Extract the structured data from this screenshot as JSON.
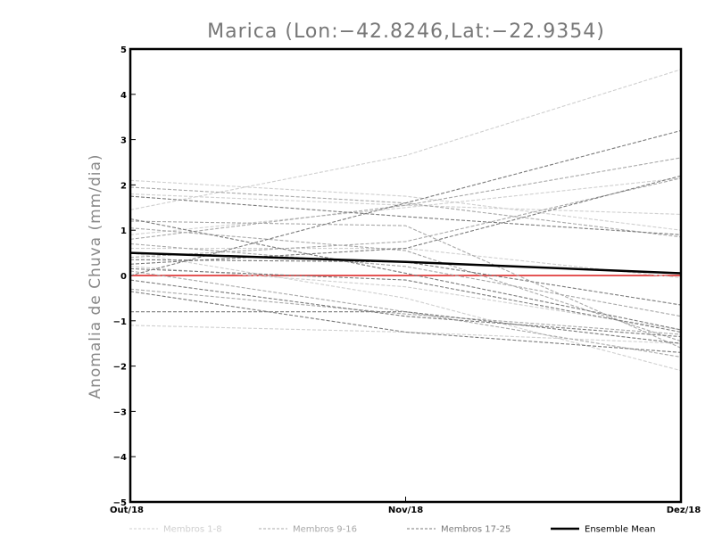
{
  "chart_data": {
    "type": "line",
    "title": "Marica (Lon:−42.8246,Lat:−22.9354)",
    "ylabel": "Anomalia de Chuva (mm/dia)",
    "xlabel": "",
    "categories": [
      "Out/18",
      "Nov/18",
      "Dez/18"
    ],
    "ylim": [
      -5,
      5
    ],
    "yticks": [
      "5",
      "4",
      "3",
      "2",
      "1",
      "0",
      "−1",
      "−2",
      "−3",
      "−4",
      "−5"
    ],
    "grid": false,
    "legend_position": "bottom",
    "zero_line_color": "#e03c3c",
    "groups": [
      {
        "name": "Membros 1-8",
        "color": "#cfcfcf"
      },
      {
        "name": "Membros 9-16",
        "color": "#a8a8a8"
      },
      {
        "name": "Membros 17-25",
        "color": "#7a7a7a"
      }
    ],
    "members": [
      {
        "group": 0,
        "values": [
          1.45,
          2.65,
          4.55
        ]
      },
      {
        "group": 0,
        "values": [
          2.1,
          1.75,
          1.0
        ]
      },
      {
        "group": 0,
        "values": [
          1.8,
          1.55,
          1.35
        ]
      },
      {
        "group": 0,
        "values": [
          0.9,
          1.5,
          2.15
        ]
      },
      {
        "group": 0,
        "values": [
          -1.1,
          -1.25,
          -1.5
        ]
      },
      {
        "group": 0,
        "values": [
          0.5,
          -0.5,
          -2.1
        ]
      },
      {
        "group": 0,
        "values": [
          0.2,
          -0.25,
          -1.2
        ]
      },
      {
        "group": 0,
        "values": [
          0.6,
          0.6,
          -0.05
        ]
      },
      {
        "group": 1,
        "values": [
          1.95,
          1.6,
          0.85
        ]
      },
      {
        "group": 1,
        "values": [
          1.2,
          1.1,
          -1.6
        ]
      },
      {
        "group": 1,
        "values": [
          0.8,
          1.55,
          2.6
        ]
      },
      {
        "group": 1,
        "values": [
          0.1,
          -0.8,
          -1.8
        ]
      },
      {
        "group": 1,
        "values": [
          -0.3,
          -0.85,
          -1.3
        ]
      },
      {
        "group": 1,
        "values": [
          0.4,
          0.75,
          2.15
        ]
      },
      {
        "group": 1,
        "values": [
          0.7,
          0.2,
          -0.9
        ]
      },
      {
        "group": 1,
        "values": [
          1.05,
          0.55,
          -1.45
        ]
      },
      {
        "group": 2,
        "values": [
          0.0,
          1.6,
          3.2
        ]
      },
      {
        "group": 2,
        "values": [
          1.75,
          1.3,
          0.9
        ]
      },
      {
        "group": 2,
        "values": [
          1.25,
          0.05,
          -1.2
        ]
      },
      {
        "group": 2,
        "values": [
          0.15,
          -0.1,
          -1.25
        ]
      },
      {
        "group": 2,
        "values": [
          -0.8,
          -0.8,
          -1.5
        ]
      },
      {
        "group": 2,
        "values": [
          -0.35,
          -1.25,
          -1.7
        ]
      },
      {
        "group": 2,
        "values": [
          0.35,
          0.3,
          -0.65
        ]
      },
      {
        "group": 2,
        "values": [
          -0.1,
          -0.9,
          -1.35
        ]
      },
      {
        "group": 2,
        "values": [
          0.25,
          0.6,
          2.2
        ]
      }
    ],
    "ensemble_mean": {
      "name": "Ensemble Mean",
      "values": [
        0.5,
        0.3,
        0.05
      ],
      "color": "#000000"
    },
    "legend": [
      {
        "label": "Membros 1-8",
        "color": "#cfcfcf",
        "style": "dashed"
      },
      {
        "label": "Membros 9-16",
        "color": "#a8a8a8",
        "style": "dashed"
      },
      {
        "label": "Membros 17-25",
        "color": "#7a7a7a",
        "style": "dashed"
      },
      {
        "label": "Ensemble Mean",
        "color": "#000000",
        "style": "solid"
      }
    ]
  }
}
